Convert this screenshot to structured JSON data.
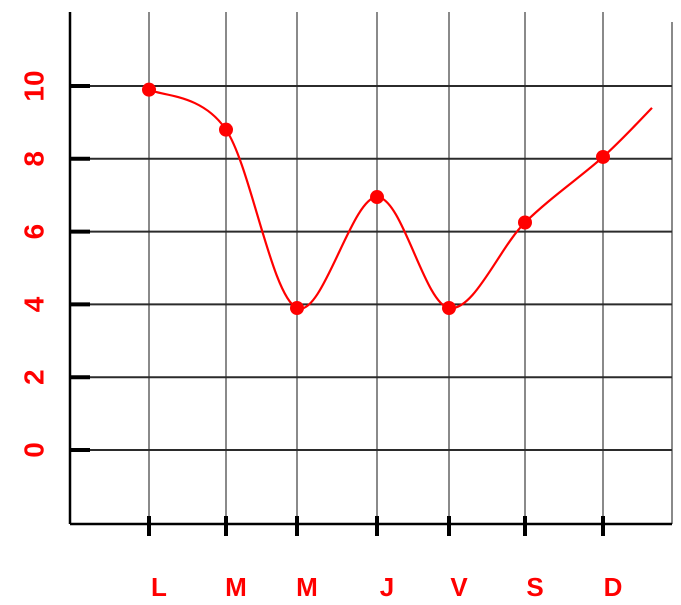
{
  "chart_data": {
    "type": "line",
    "title": "",
    "xlabel": "",
    "ylabel": "",
    "categories": [
      "L",
      "M",
      "M",
      "J",
      "V",
      "S",
      "D"
    ],
    "yticks": [
      "0",
      "2",
      "4",
      "6",
      "8",
      "10"
    ],
    "series": [
      {
        "values": [
          9.9,
          8.8,
          3.9,
          6.95,
          3.9,
          6.25,
          8.05
        ],
        "curve_end": 9.4
      }
    ],
    "ylim": [
      -2,
      12
    ],
    "grid": true,
    "colors": {
      "series": "#ff0000",
      "labels": "#ff0000",
      "grid_horizontal": "#2b2b2b",
      "grid_vertical": "#8a8a8a",
      "axis": "#000000"
    }
  }
}
